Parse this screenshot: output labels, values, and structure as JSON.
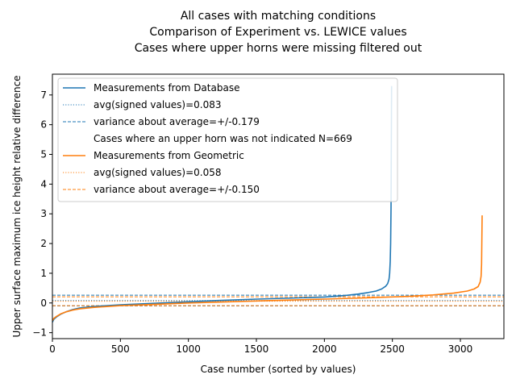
{
  "chart_data": {
    "type": "line",
    "title_lines": [
      "All cases with matching conditions",
      "Comparison of Experiment vs. LEWICE values",
      "Cases where upper horns were missing filtered out"
    ],
    "xlabel": "Case number (sorted by values)",
    "ylabel": "Upper surface maximum ice height relative difference",
    "xlim": [
      0,
      3320
    ],
    "ylim": [
      -1.2,
      7.7
    ],
    "xticks": [
      0,
      500,
      1000,
      1500,
      2000,
      2500,
      3000
    ],
    "yticks": [
      -1,
      0,
      1,
      2,
      3,
      4,
      5,
      6,
      7
    ],
    "legend_position": "top-left",
    "colors": {
      "database": "#1f77b4",
      "geometric": "#ff7f0e"
    },
    "series": [
      {
        "name": "Measurements from Database",
        "color": "#1f77b4",
        "x": [
          0,
          10,
          30,
          60,
          100,
          150,
          200,
          300,
          500,
          800,
          1000,
          1200,
          1500,
          1800,
          2000,
          2150,
          2250,
          2320,
          2380,
          2420,
          2450,
          2465,
          2475,
          2480,
          2484,
          2487,
          2490,
          2492,
          2494
        ],
        "y": [
          -0.65,
          -0.55,
          -0.47,
          -0.38,
          -0.3,
          -0.22,
          -0.17,
          -0.12,
          -0.06,
          0.0,
          0.04,
          0.08,
          0.13,
          0.17,
          0.2,
          0.25,
          0.3,
          0.35,
          0.4,
          0.47,
          0.56,
          0.65,
          0.8,
          1.0,
          1.4,
          2.0,
          3.2,
          5.0,
          7.3
        ]
      },
      {
        "name": "Measurements from Geometric",
        "color": "#ff7f0e",
        "x": [
          0,
          10,
          30,
          60,
          100,
          150,
          200,
          300,
          500,
          800,
          1000,
          1300,
          1600,
          2000,
          2300,
          2600,
          2800,
          2950,
          3050,
          3100,
          3130,
          3145,
          3152,
          3156,
          3160
        ],
        "y": [
          -0.6,
          -0.52,
          -0.45,
          -0.37,
          -0.3,
          -0.24,
          -0.2,
          -0.15,
          -0.09,
          -0.04,
          0.0,
          0.04,
          0.08,
          0.13,
          0.17,
          0.22,
          0.27,
          0.33,
          0.4,
          0.47,
          0.55,
          0.7,
          0.9,
          1.3,
          2.95
        ]
      }
    ],
    "reference_lines": [
      {
        "series": "database",
        "style": "dotted",
        "y": 0.083
      },
      {
        "series": "database",
        "style": "dashed",
        "y": 0.262
      },
      {
        "series": "database",
        "style": "dashed",
        "y": -0.096
      },
      {
        "series": "geometric",
        "style": "dotted",
        "y": 0.058
      },
      {
        "series": "geometric",
        "style": "dashed",
        "y": 0.208
      },
      {
        "series": "geometric",
        "style": "dashed",
        "y": -0.092
      }
    ],
    "legend": [
      {
        "label": "Measurements from Database",
        "style": "solid",
        "color": "#1f77b4"
      },
      {
        "label": "avg(signed values)=0.083",
        "style": "dotted",
        "color": "#1f77b4"
      },
      {
        "label": "variance about average=+/-0.179",
        "style": "dashed",
        "color": "#1f77b4"
      },
      {
        "label": "Cases where an upper horn was not indicated N=669",
        "style": "none",
        "color": ""
      },
      {
        "label": "Measurements from Geometric",
        "style": "solid",
        "color": "#ff7f0e"
      },
      {
        "label": "avg(signed values)=0.058",
        "style": "dotted",
        "color": "#ff7f0e"
      },
      {
        "label": "variance about average=+/-0.150",
        "style": "dashed",
        "color": "#ff7f0e"
      }
    ]
  }
}
